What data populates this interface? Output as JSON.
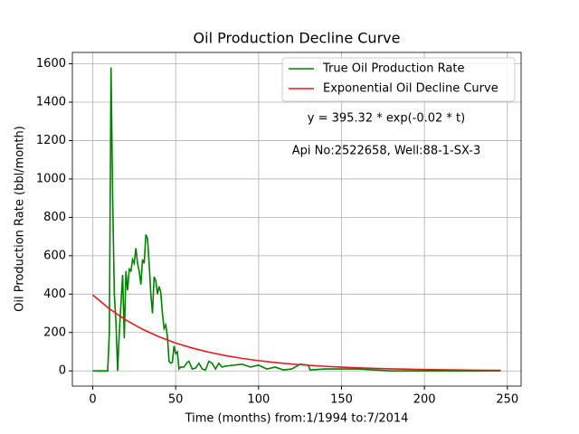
{
  "chart_data": {
    "type": "line",
    "title": "Oil Production Decline Curve",
    "xlabel": "Time (months) from:1/1994 to:7/2014",
    "ylabel": "Oil Production Rate (bbl/month)",
    "annotations": [
      "y = 395.32 * exp(-0.02 * t)",
      "Api No:2522658, Well:88-1-SX-3"
    ],
    "xlim": [
      -12.3,
      258.3
    ],
    "xticks": [
      0,
      50,
      100,
      150,
      200,
      250
    ],
    "ylim": [
      -79,
      1659
    ],
    "yticks": [
      0,
      200,
      400,
      600,
      800,
      1000,
      1200,
      1400,
      1600
    ],
    "grid": true,
    "legend": "upper right",
    "series": [
      {
        "name": "True Oil Production Rate",
        "color": "#008000",
        "x": [
          0,
          9,
          10,
          11,
          12,
          13,
          14,
          15,
          16,
          17,
          18,
          19,
          20,
          21,
          22,
          23,
          24,
          25,
          26,
          27,
          28,
          29,
          30,
          31,
          32,
          33,
          34,
          35,
          36,
          37,
          38,
          39,
          40,
          41,
          42,
          43,
          44,
          45,
          46,
          47,
          48,
          49,
          50,
          51,
          52,
          53,
          55,
          57,
          58,
          60,
          62,
          64,
          66,
          68,
          70,
          72,
          74,
          76,
          78,
          80,
          85,
          90,
          95,
          100,
          105,
          110,
          115,
          120,
          125,
          130,
          131,
          140,
          150,
          160,
          170,
          180,
          200,
          246
        ],
        "values": [
          0,
          0,
          200,
          1580,
          900,
          400,
          250,
          0,
          200,
          350,
          500,
          170,
          520,
          420,
          530,
          520,
          580,
          560,
          640,
          560,
          520,
          450,
          580,
          560,
          710,
          690,
          560,
          400,
          300,
          490,
          470,
          400,
          440,
          410,
          300,
          220,
          240,
          180,
          50,
          40,
          45,
          130,
          90,
          100,
          10,
          20,
          20,
          45,
          50,
          10,
          15,
          40,
          10,
          5,
          50,
          40,
          10,
          40,
          20,
          25,
          30,
          35,
          20,
          30,
          10,
          20,
          5,
          10,
          35,
          30,
          5,
          10,
          10,
          10,
          5,
          0,
          0,
          0
        ]
      },
      {
        "name": "Exponential Oil Decline Curve",
        "color": "#e41a1c",
        "x": [
          0,
          10,
          20,
          30,
          40,
          50,
          60,
          70,
          80,
          90,
          100,
          110,
          120,
          130,
          140,
          150,
          160,
          170,
          180,
          190,
          200,
          210,
          220,
          230,
          240,
          246
        ],
        "values": [
          395.3,
          323.7,
          265.0,
          217.0,
          177.6,
          145.4,
          119.1,
          97.5,
          79.8,
          65.3,
          53.5,
          43.8,
          35.9,
          29.4,
          24.0,
          19.7,
          16.1,
          13.2,
          10.8,
          8.8,
          7.2,
          5.9,
          4.9,
          4.0,
          3.2,
          2.9
        ]
      }
    ]
  }
}
